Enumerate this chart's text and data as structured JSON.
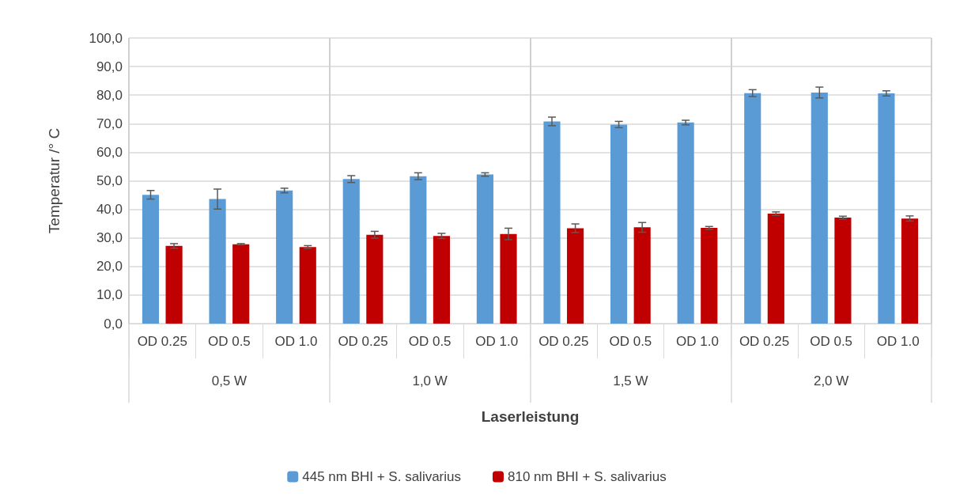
{
  "chart_data": {
    "type": "bar",
    "xlabel": "Laserleistung",
    "ylabel": "Temperatur /° C",
    "categories": [
      "OD 0.25",
      "OD 0.5",
      "OD 1.0",
      "OD 0.25",
      "OD 0.5",
      "OD 1.0",
      "OD 0.25",
      "OD 0.5",
      "OD 1.0",
      "OD 0.25",
      "OD 0.5",
      "OD 1.0"
    ],
    "annotations": [
      "0,5 W",
      "1,0 W",
      "1,5 W",
      "2,0 W"
    ],
    "series": [
      {
        "name": "445 nm BHI + S. salivarius",
        "color": "#5b9bd5",
        "values": [
          45.1,
          43.6,
          46.6,
          50.6,
          51.6,
          52.2,
          70.8,
          69.7,
          70.4,
          80.7,
          80.9,
          80.6
        ],
        "errors": [
          1.5,
          3.5,
          0.8,
          1.2,
          1.2,
          0.6,
          1.5,
          1.1,
          0.8,
          1.2,
          1.9,
          0.9
        ]
      },
      {
        "name": "810 nm BHI + S. salivarius",
        "color": "#c00000",
        "values": [
          27.2,
          27.8,
          26.8,
          31.1,
          30.7,
          31.4,
          33.4,
          33.7,
          33.5,
          38.5,
          37.1,
          36.8
        ],
        "errors": [
          0.8,
          0.2,
          0.5,
          1.2,
          0.9,
          2.0,
          1.5,
          1.7,
          0.5,
          0.6,
          0.5,
          0.9
        ]
      }
    ],
    "ylim": [
      0,
      100
    ],
    "yticks": [
      {
        "value": 0,
        "label": "0,0"
      },
      {
        "value": 10,
        "label": "10,0"
      },
      {
        "value": 20,
        "label": "20,0"
      },
      {
        "value": 30,
        "label": "30,0"
      },
      {
        "value": 40,
        "label": "40,0"
      },
      {
        "value": 50,
        "label": "50,0"
      },
      {
        "value": 60,
        "label": "60,0"
      },
      {
        "value": 70,
        "label": "70,0"
      },
      {
        "value": 80,
        "label": "80,0"
      },
      {
        "value": 90,
        "label": "90,0"
      },
      {
        "value": 100,
        "label": "100,0"
      }
    ],
    "grid": "y",
    "legend": "bottom"
  }
}
